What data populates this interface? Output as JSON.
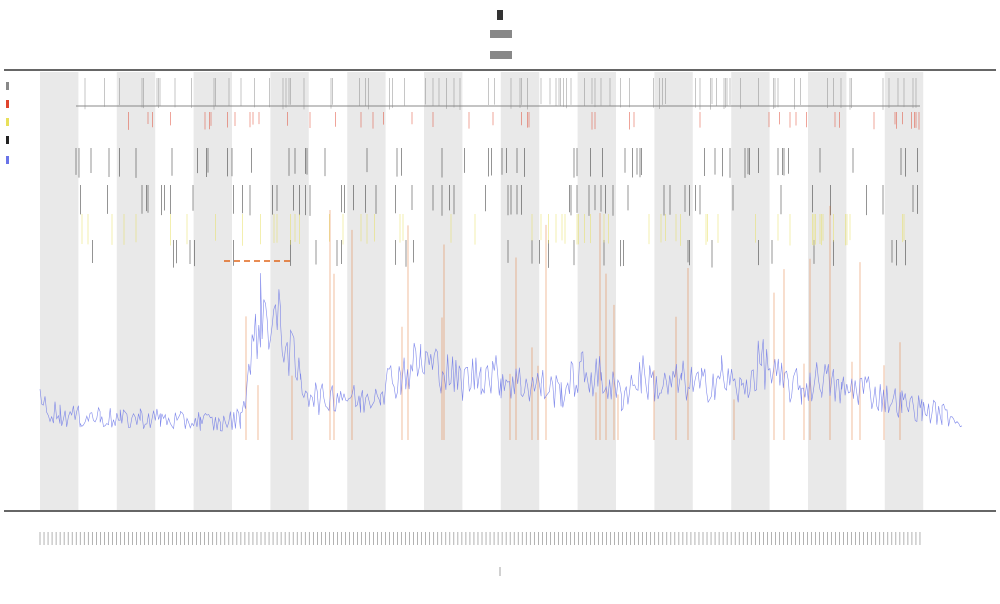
{
  "chart_data": {
    "type": "line",
    "title": "",
    "xlabel": "",
    "ylabel": "",
    "grid": false,
    "legend": "left",
    "band_count": 23,
    "x_tick_count": 220,
    "colors": {
      "band": "#e9e9e9",
      "axis": "#333333",
      "coverage_line": "#6a74e8",
      "peak_line": "#e0661a",
      "black_track": "#222222",
      "yellow_track": "#e8e05a",
      "red_track": "#e0442c",
      "gray_track": "#888888",
      "dashed_segment": "#e0661a"
    },
    "series": [
      {
        "kind": "line",
        "color": "#6a74e8",
        "x": [
          0,
          20,
          40,
          60,
          80,
          100,
          120,
          140,
          160,
          180,
          200,
          220,
          240,
          260,
          280,
          300,
          320,
          340,
          360,
          380,
          400,
          420,
          440,
          460,
          480,
          500,
          520,
          540,
          560,
          580,
          600,
          620,
          640,
          660,
          680,
          700,
          720,
          740,
          760,
          780,
          800,
          820,
          840,
          860,
          880,
          900,
          920
        ],
        "values": [
          40,
          32,
          30,
          31,
          28,
          30,
          29,
          27,
          28,
          25,
          30,
          105,
          95,
          55,
          42,
          48,
          40,
          52,
          60,
          70,
          64,
          55,
          62,
          58,
          54,
          52,
          48,
          62,
          58,
          45,
          60,
          50,
          56,
          52,
          60,
          48,
          70,
          55,
          50,
          58,
          48,
          52,
          44,
          40,
          36,
          32,
          30
        ]
      }
    ],
    "y_range": [
      0,
      300
    ],
    "x_range": [
      0,
      920
    ]
  }
}
